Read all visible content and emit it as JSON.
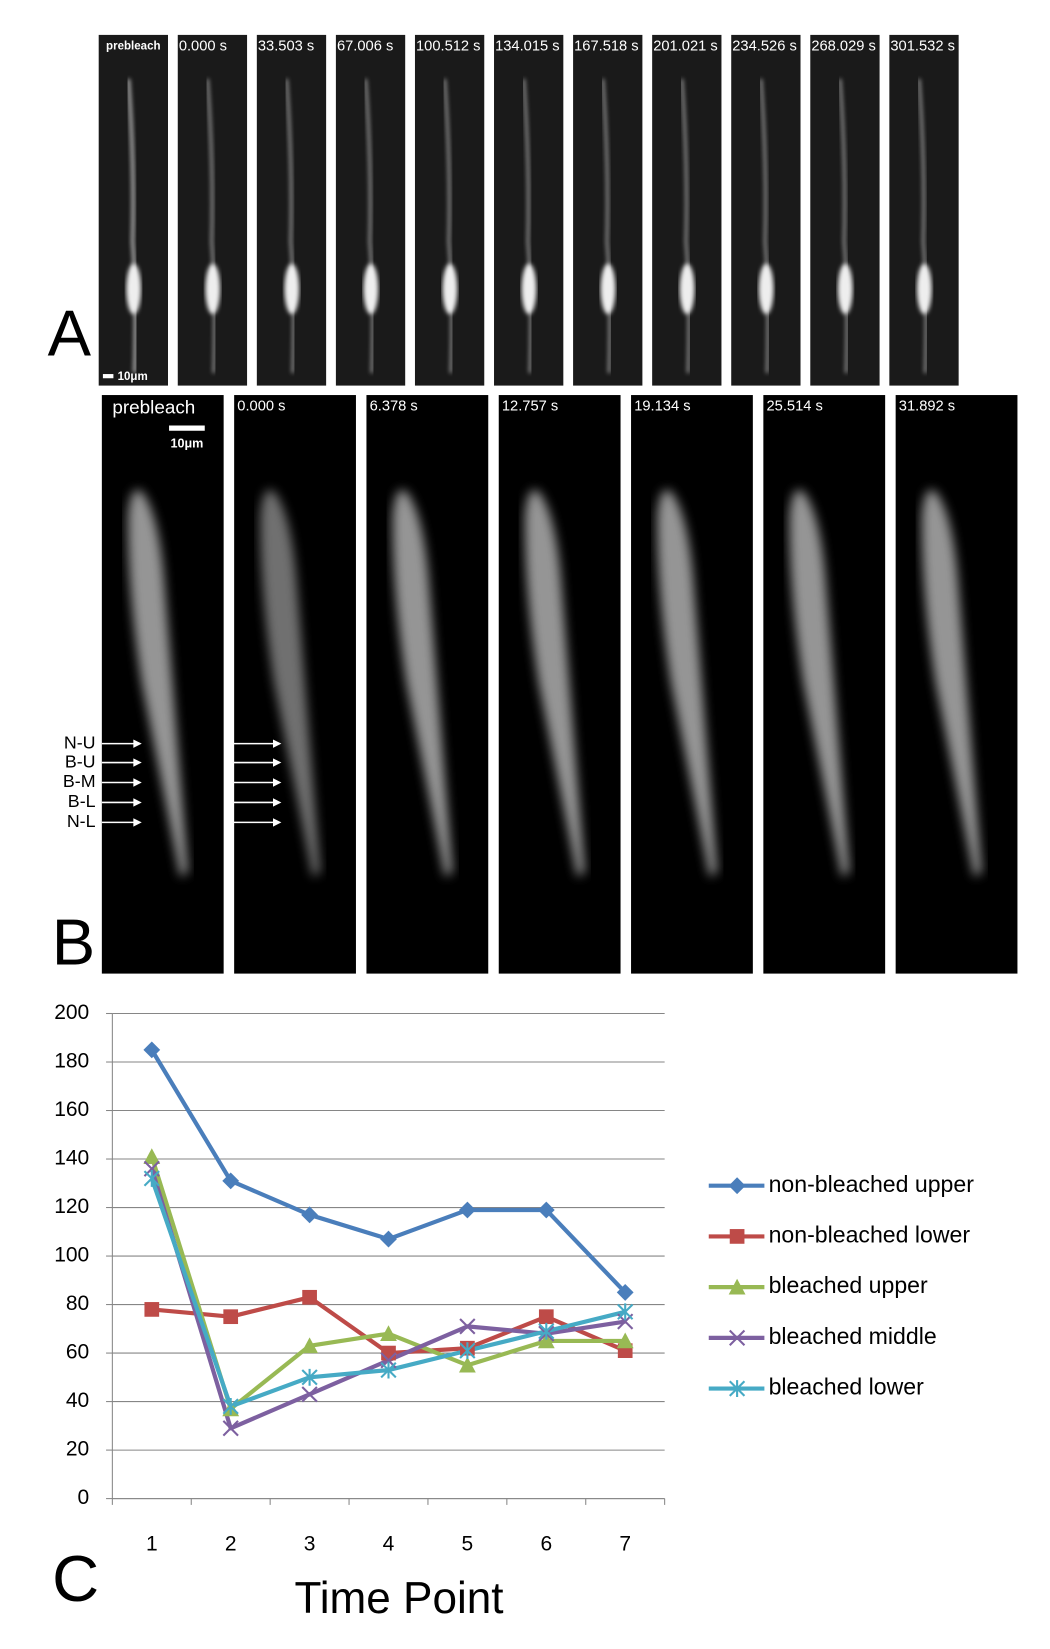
{
  "panel_a": {
    "letter": "A",
    "frame_labels": [
      "prebleach",
      "0.000 s",
      "33.503 s",
      "67.006 s",
      "100.512 s",
      "134.015 s",
      "167.518 s",
      "201.021 s",
      "234.526 s",
      "268.029 s",
      "301.532 s"
    ],
    "scale_bar": "10μm"
  },
  "panel_b": {
    "letter": "B",
    "frame_labels": [
      "prebleach",
      "0.000 s",
      "6.378 s",
      "12.757 s",
      "19.134 s",
      "25.514 s",
      "31.892 s"
    ],
    "scale_bar": "10μm",
    "arrow_labels": [
      "N-U",
      "B-U",
      "B-M",
      "B-L",
      "N-L"
    ]
  },
  "panel_c": {
    "letter": "C"
  },
  "chart_data": {
    "type": "line",
    "x_label": "Time Point",
    "categories": [
      "1",
      "2",
      "3",
      "4",
      "5",
      "6",
      "7"
    ],
    "ylim": [
      0,
      200
    ],
    "yticks": [
      0,
      20,
      40,
      60,
      80,
      100,
      120,
      140,
      160,
      180,
      200
    ],
    "grid": true,
    "legend": "right",
    "series": [
      {
        "name": "non-bleached upper",
        "color": "#4a7ebb",
        "values": [
          185,
          131,
          117,
          107,
          119,
          119,
          85
        ]
      },
      {
        "name": "non-bleached lower",
        "color": "#be4b48",
        "values": [
          78,
          75,
          83,
          60,
          62,
          75,
          61
        ]
      },
      {
        "name": "bleached upper",
        "color": "#98b954",
        "values": [
          141,
          37,
          63,
          68,
          55,
          65,
          65
        ]
      },
      {
        "name": "bleached middle",
        "color": "#7d60a0",
        "values": [
          136,
          29,
          43,
          57,
          71,
          68,
          73
        ]
      },
      {
        "name": "bleached lower",
        "color": "#46aac5",
        "values": [
          132,
          38,
          50,
          53,
          61,
          69,
          77
        ]
      }
    ]
  }
}
